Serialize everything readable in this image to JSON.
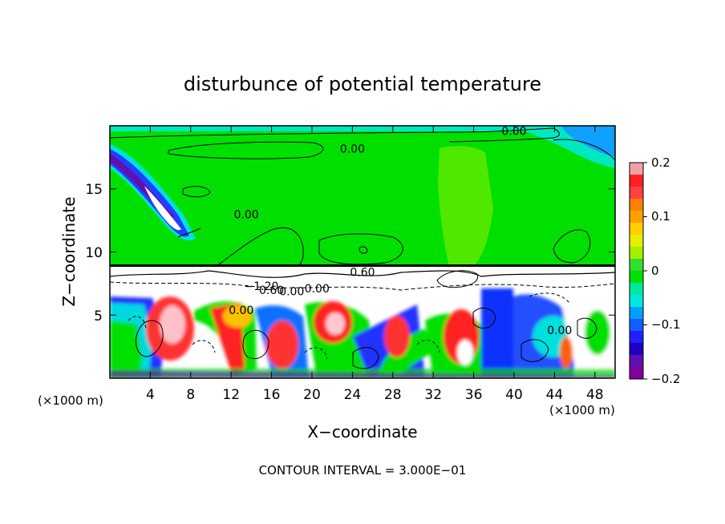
{
  "chart_data": {
    "type": "heatmap",
    "title": "disturbunce of potential temperature",
    "xlabel": "X−coordinate",
    "ylabel": "Z−coordinate",
    "x_unit": "(×1000 m)",
    "x_unit_right": "(×1000 m)",
    "footer": "CONTOUR INTERVAL = 3.000E−01",
    "xlim": [
      0,
      50
    ],
    "ylim": [
      0,
      20
    ],
    "x_ticks": [
      4,
      8,
      12,
      16,
      20,
      24,
      28,
      32,
      36,
      40,
      44,
      48
    ],
    "y_ticks": [
      5,
      10,
      15
    ],
    "colorbar": {
      "min": -0.2,
      "max": 0.2,
      "ticks": [
        "0.2",
        "0.1",
        "0",
        "−0.1",
        "−0.2"
      ],
      "tick_values": [
        0.2,
        0.1,
        0,
        -0.1,
        -0.2
      ],
      "colors": [
        "#f4a0a8",
        "#ff2020",
        "#ff4040",
        "#ff8000",
        "#ffa000",
        "#ffd000",
        "#e8f000",
        "#a0f000",
        "#30e030",
        "#00e000",
        "#00e8a0",
        "#00e8e0",
        "#00a0ff",
        "#1060ff",
        "#2020ff",
        "#2000c0",
        "#6010b0",
        "#8000a0"
      ]
    },
    "contour_labels": [
      {
        "text": "0.00",
        "x": 40,
        "z": 19.6
      },
      {
        "text": "0.00",
        "x": 24,
        "z": 18.2
      },
      {
        "text": "0.00",
        "x": 13.5,
        "z": 13.0
      },
      {
        "text": "0.60",
        "x": 25.0,
        "z": 8.4
      },
      {
        "text": "−1.20",
        "x": 15.0,
        "z": 7.3
      },
      {
        "text": "0.60",
        "x": 16.0,
        "z": 7.0
      },
      {
        "text": "0.00",
        "x": 18.0,
        "z": 6.9
      },
      {
        "text": "0.00",
        "x": 13.0,
        "z": 5.4
      },
      {
        "text": "0.00",
        "x": 44.5,
        "z": 3.8
      },
      {
        "text": "0.00",
        "x": 20.5,
        "z": 7.1
      }
    ]
  }
}
